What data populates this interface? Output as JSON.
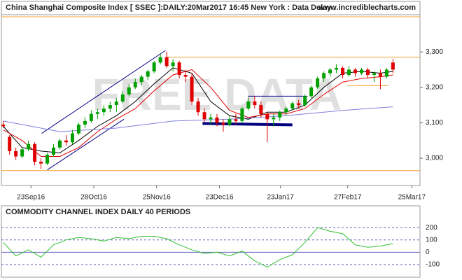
{
  "chart_data": [
    {
      "type": "candlestick",
      "title": "China Shanghai Composite Index [ SSEC ]:DAILY:20Mar2017 16:45 New York : Data Delay..",
      "source": "www.incrediblecharts.com",
      "watermark": "FREE DATA",
      "up_color": "#00a000",
      "down_color": "#e00000",
      "xlim": [
        -0.3,
        66.3
      ],
      "xticks": [
        {
          "value": 4.4,
          "label": "23Sep16"
        },
        {
          "value": 14.4,
          "label": "28Oct16"
        },
        {
          "value": 24.4,
          "label": "25Nov16"
        },
        {
          "value": 34.4,
          "label": "23Dec16"
        },
        {
          "value": 44.1,
          "label": "23Jan17"
        },
        {
          "value": 54.8,
          "label": "27Feb17"
        },
        {
          "value": 65,
          "label": "25Mar17"
        }
      ],
      "ylim": [
        2923,
        3403
      ],
      "yticks": [
        {
          "value": 3000,
          "label": "3,000"
        },
        {
          "value": 3100,
          "label": "3,100"
        },
        {
          "value": 3200,
          "label": "3,200"
        },
        {
          "value": 3300,
          "label": "3,300"
        }
      ],
      "open": [
        3095,
        3060,
        3020,
        3005,
        3025,
        3040,
        2990,
        2985,
        3010,
        3030,
        3050,
        3045,
        3070,
        3095,
        3105,
        3125,
        3130,
        3140,
        3150,
        3160,
        3180,
        3200,
        3215,
        3230,
        3245,
        3270,
        3285,
        3260,
        3270,
        3235,
        3230,
        3160,
        3130,
        3110,
        3115,
        3100,
        3095,
        3110,
        3105,
        3140,
        3160,
        3150,
        3125,
        3110,
        3115,
        3130,
        3140,
        3155,
        3150,
        3175,
        3200,
        3225,
        3240,
        3250,
        3255,
        3235,
        3250,
        3240,
        3250,
        3235,
        3240,
        3230,
        3270
      ],
      "high": [
        3105,
        3065,
        3030,
        3030,
        3050,
        3045,
        3000,
        3015,
        3040,
        3055,
        3065,
        3080,
        3100,
        3115,
        3135,
        3140,
        3150,
        3160,
        3170,
        3190,
        3210,
        3225,
        3235,
        3250,
        3275,
        3295,
        3301,
        3280,
        3275,
        3250,
        3240,
        3170,
        3140,
        3125,
        3125,
        3110,
        3120,
        3125,
        3145,
        3170,
        3175,
        3160,
        3130,
        3125,
        3135,
        3145,
        3160,
        3165,
        3180,
        3205,
        3230,
        3245,
        3255,
        3265,
        3260,
        3260,
        3255,
        3255,
        3255,
        3245,
        3250,
        3255,
        3280
      ],
      "low": [
        3085,
        3010,
        2995,
        3000,
        3020,
        2980,
        2970,
        2980,
        3005,
        3025,
        3035,
        3040,
        3065,
        3085,
        3100,
        3110,
        3120,
        3130,
        3130,
        3155,
        3175,
        3195,
        3205,
        3220,
        3240,
        3265,
        3255,
        3245,
        3225,
        3215,
        3150,
        3120,
        3100,
        3095,
        3090,
        3075,
        3090,
        3095,
        3100,
        3135,
        3140,
        3115,
        3045,
        3090,
        3105,
        3120,
        3135,
        3140,
        3145,
        3170,
        3195,
        3215,
        3230,
        3240,
        3225,
        3230,
        3230,
        3235,
        3225,
        3215,
        3195,
        3225,
        3240
      ],
      "close": [
        3090,
        3020,
        3005,
        3025,
        3040,
        2990,
        2985,
        3010,
        3030,
        3050,
        3045,
        3070,
        3095,
        3105,
        3125,
        3130,
        3140,
        3150,
        3160,
        3180,
        3200,
        3215,
        3230,
        3245,
        3270,
        3285,
        3260,
        3270,
        3235,
        3230,
        3160,
        3130,
        3110,
        3115,
        3100,
        3095,
        3110,
        3105,
        3140,
        3160,
        3150,
        3125,
        3110,
        3115,
        3130,
        3140,
        3155,
        3150,
        3175,
        3200,
        3225,
        3240,
        3250,
        3255,
        3235,
        3250,
        3240,
        3250,
        3235,
        3240,
        3230,
        3250,
        3250
      ],
      "averages": [
        {
          "color": "#000000",
          "x": [
            0,
            3,
            6,
            9,
            12,
            15,
            18,
            21,
            24,
            27,
            30,
            33,
            36,
            39,
            42,
            45,
            48,
            51,
            54,
            57,
            60,
            62
          ],
          "values": [
            3090,
            3030,
            3020,
            3015,
            3050,
            3090,
            3120,
            3160,
            3210,
            3255,
            3240,
            3160,
            3120,
            3110,
            3130,
            3130,
            3150,
            3200,
            3240,
            3245,
            3240,
            3245
          ]
        },
        {
          "color": "#e00000",
          "x": [
            0,
            3,
            6,
            9,
            12,
            15,
            18,
            21,
            24,
            27,
            30,
            33,
            36,
            39,
            42,
            45,
            48,
            51,
            54,
            57,
            60,
            62
          ],
          "values": [
            3080,
            3050,
            3005,
            3005,
            3030,
            3075,
            3110,
            3140,
            3190,
            3235,
            3250,
            3200,
            3135,
            3115,
            3125,
            3125,
            3140,
            3180,
            3215,
            3225,
            3230,
            3235
          ]
        },
        {
          "color": "#8080e0",
          "x": [
            0,
            9,
            18,
            27,
            36,
            45,
            54,
            62
          ],
          "values": [
            3105,
            3075,
            3085,
            3105,
            3110,
            3120,
            3135,
            3145
          ]
        }
      ],
      "lines": [
        {
          "color": "#f0a030",
          "x": [
            -0.3,
            66.3
          ],
          "y": [
            3399,
            3399
          ]
        },
        {
          "color": "#f0a030",
          "x": [
            26,
            66.3
          ],
          "y": [
            3285,
            3285
          ]
        },
        {
          "color": "#f0a030",
          "x": [
            -0.3,
            66.3
          ],
          "y": [
            2965,
            2965
          ]
        },
        {
          "color": "#f0a030",
          "x": [
            54.7,
            61.3
          ],
          "y": [
            3205,
            3205
          ]
        },
        {
          "color": "#000080",
          "x": [
            6.1,
            25.8
          ],
          "y": [
            3070,
            3304
          ]
        },
        {
          "color": "#000080",
          "x": [
            7,
            19.2
          ],
          "y": [
            2967,
            3110
          ]
        },
        {
          "color": "#000080",
          "x": [
            38.9,
            48.4
          ],
          "y": [
            3175,
            3175
          ]
        },
        {
          "color": "#000080",
          "x": [
            31.7,
            46
          ],
          "y": [
            3098,
            3094
          ],
          "heavy": true
        }
      ]
    },
    {
      "type": "line",
      "title": "COMMODITY CHANNEL INDEX DAILY 40 PERIODS",
      "color": "#30c030",
      "xlim": [
        -0.3,
        66.3
      ],
      "ylim": [
        -197,
        360
      ],
      "yticks": [
        -100,
        0,
        100,
        200
      ],
      "x": [
        0,
        2,
        4,
        6,
        8,
        10,
        12,
        14,
        16,
        18,
        20,
        22,
        24,
        26,
        28,
        30,
        32,
        34,
        36,
        38,
        40,
        42,
        44,
        46,
        48,
        50,
        52,
        54,
        56,
        58,
        60,
        62
      ],
      "values": [
        80,
        -30,
        20,
        -40,
        60,
        100,
        120,
        110,
        90,
        120,
        110,
        130,
        130,
        110,
        60,
        20,
        -10,
        0,
        -30,
        10,
        -70,
        -120,
        -60,
        -20,
        80,
        200,
        170,
        150,
        60,
        40,
        50,
        70
      ]
    }
  ]
}
